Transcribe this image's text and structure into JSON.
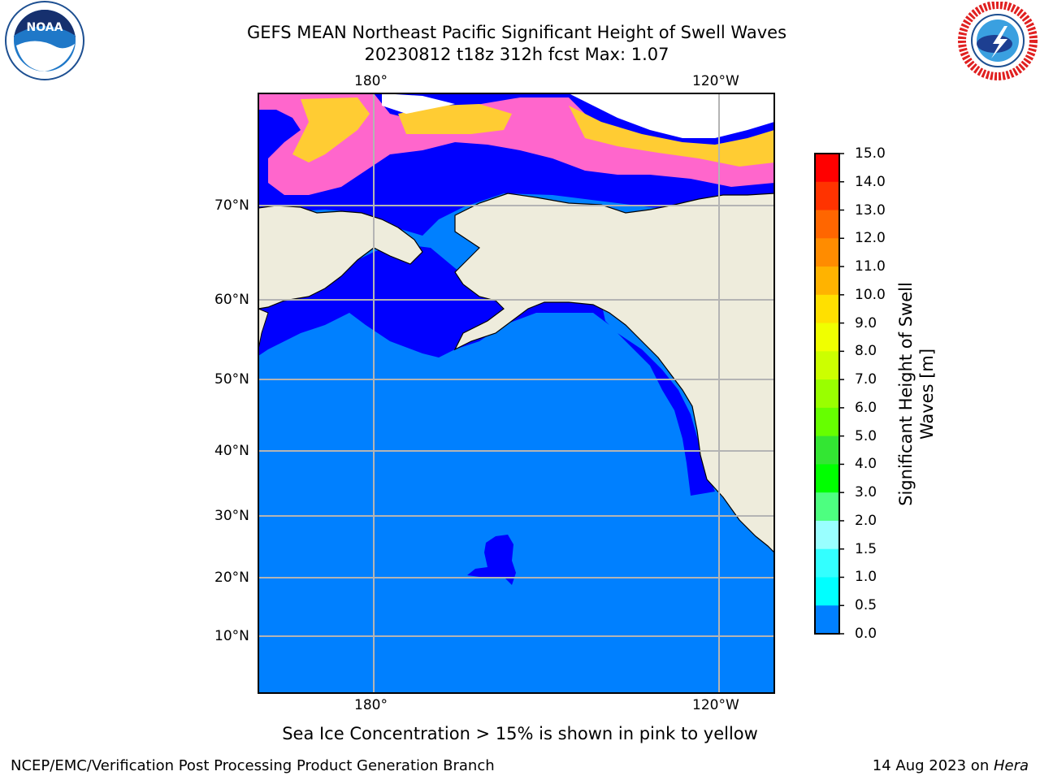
{
  "header": {
    "title_line1": "GEFS MEAN Northeast Pacific Significant Height of Swell Waves",
    "title_line2": "20230812 t18z 312h fcst   Max: 1.07"
  },
  "logos": {
    "left": "NOAA",
    "right": "NATIONAL WEATHER SERVICE"
  },
  "map": {
    "lon_labels": [
      "180°",
      "120°W"
    ],
    "lat_labels": [
      "70°N",
      "60°N",
      "50°N",
      "40°N",
      "30°N",
      "20°N",
      "10°N"
    ],
    "colors": {
      "ocean_low": "#0080ff",
      "ocean_very_low": "#0000ff",
      "land": "#eeecdc",
      "ice_pink": "#ff66cc",
      "ice_yellow": "#ffcc33",
      "grid": "#b4b4b4"
    }
  },
  "colorbar": {
    "title_line1": "Significant Height of Swell",
    "title_line2": "Waves [m]",
    "levels": [
      "15.0",
      "14.0",
      "13.0",
      "12.0",
      "11.0",
      "10.0",
      "9.0",
      "8.0",
      "7.0",
      "6.0",
      "5.0",
      "4.0",
      "3.0",
      "2.0",
      "1.5",
      "1.0",
      "0.5",
      "0.0"
    ],
    "colors": [
      "#ff0000",
      "#ff3300",
      "#ff6600",
      "#ff8c00",
      "#ffb300",
      "#ffe000",
      "#f0ff00",
      "#ccff00",
      "#99ff00",
      "#66ff00",
      "#33e633",
      "#00ff00",
      "#4dff80",
      "#99ffff",
      "#33ffff",
      "#00ffff",
      "#0080ff",
      "#0000ff"
    ]
  },
  "footer": {
    "sea_ice_note": "Sea Ice Concentration > 15% is shown in pink to yellow",
    "branch": "NCEP/EMC/Verification Post Processing Product Generation Branch",
    "date_prefix": "14 Aug 2023 on ",
    "date_machine": "Hera"
  }
}
